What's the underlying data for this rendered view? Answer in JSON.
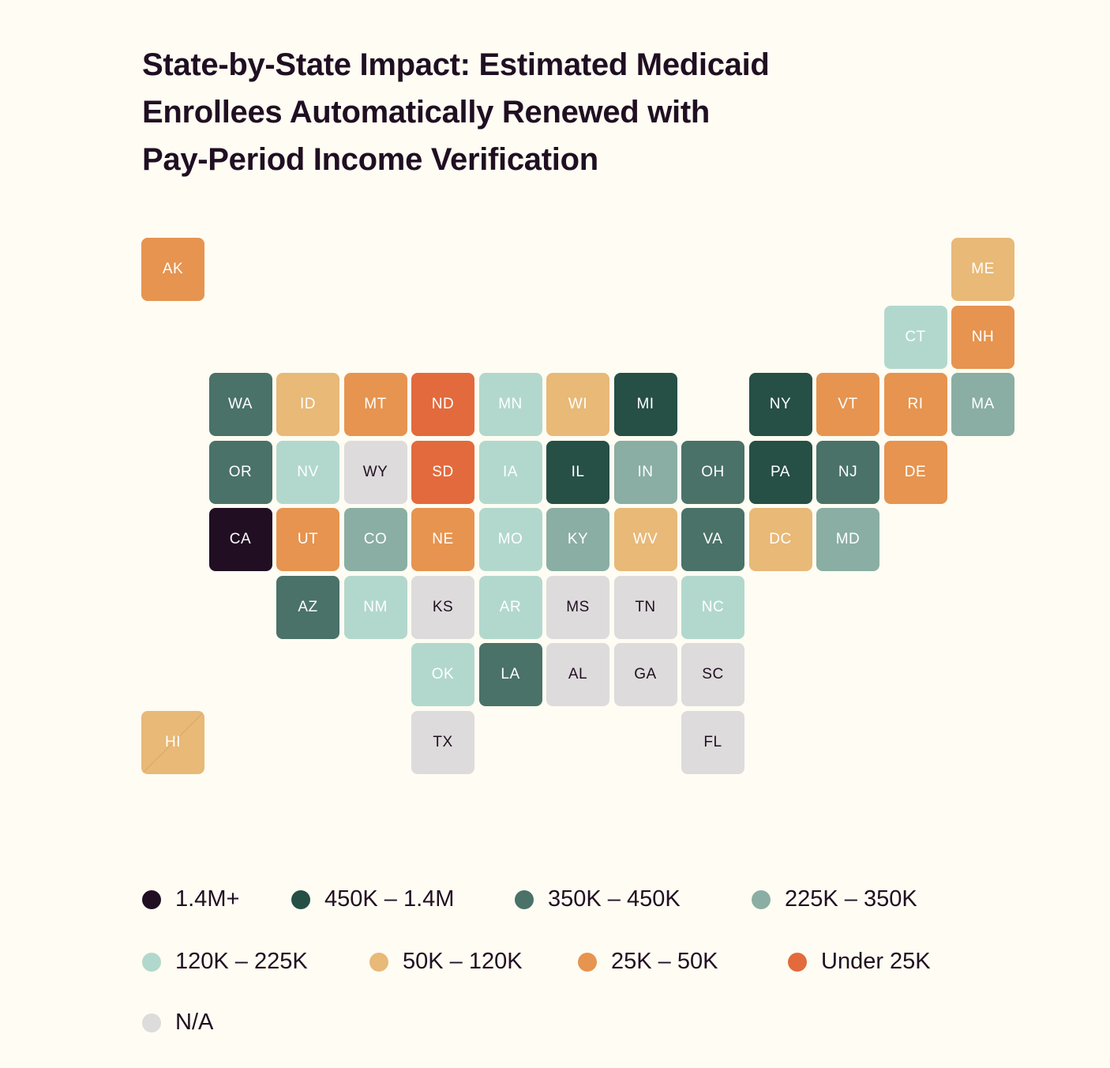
{
  "title_lines": [
    "State-by-State Impact: Estimated Medicaid",
    "Enrollees Automatically Renewed with",
    "Pay-Period Income Verification"
  ],
  "legend": [
    {
      "label": "1.4M+",
      "color": "#220e23"
    },
    {
      "label": "450K – 1.4M",
      "color": "#264f45"
    },
    {
      "label": "350K – 450K",
      "color": "#4a7268"
    },
    {
      "label": "225K – 350K",
      "color": "#8aaea3"
    },
    {
      "label": "120K – 225K",
      "color": "#b2d8cd"
    },
    {
      "label": "50K – 120K",
      "color": "#e8b977"
    },
    {
      "label": "25K – 50K",
      "color": "#e6944f"
    },
    {
      "label": "Under 25K",
      "color": "#e36a3c"
    },
    {
      "label": "N/A",
      "color": "#dddbdb"
    }
  ],
  "states": [
    {
      "abbr": "AK",
      "bin": 6,
      "col": 0,
      "row": 0
    },
    {
      "abbr": "ME",
      "bin": 5,
      "col": 12,
      "row": 0
    },
    {
      "abbr": "CT",
      "bin": 4,
      "col": 11,
      "row": 1
    },
    {
      "abbr": "NH",
      "bin": 6,
      "col": 12,
      "row": 1
    },
    {
      "abbr": "WA",
      "bin": 2,
      "col": 1,
      "row": 2
    },
    {
      "abbr": "ID",
      "bin": 5,
      "col": 2,
      "row": 2
    },
    {
      "abbr": "MT",
      "bin": 6,
      "col": 3,
      "row": 2
    },
    {
      "abbr": "ND",
      "bin": 7,
      "col": 4,
      "row": 2
    },
    {
      "abbr": "MN",
      "bin": 4,
      "col": 5,
      "row": 2
    },
    {
      "abbr": "WI",
      "bin": 5,
      "col": 6,
      "row": 2
    },
    {
      "abbr": "MI",
      "bin": 1,
      "col": 7,
      "row": 2
    },
    {
      "abbr": "NY",
      "bin": 1,
      "col": 9,
      "row": 2
    },
    {
      "abbr": "VT",
      "bin": 6,
      "col": 10,
      "row": 2
    },
    {
      "abbr": "RI",
      "bin": 6,
      "col": 11,
      "row": 2
    },
    {
      "abbr": "MA",
      "bin": 3,
      "col": 12,
      "row": 2
    },
    {
      "abbr": "OR",
      "bin": 2,
      "col": 1,
      "row": 3
    },
    {
      "abbr": "NV",
      "bin": 4,
      "col": 2,
      "row": 3
    },
    {
      "abbr": "WY",
      "bin": 8,
      "col": 3,
      "row": 3
    },
    {
      "abbr": "SD",
      "bin": 7,
      "col": 4,
      "row": 3
    },
    {
      "abbr": "IA",
      "bin": 4,
      "col": 5,
      "row": 3
    },
    {
      "abbr": "IL",
      "bin": 1,
      "col": 6,
      "row": 3
    },
    {
      "abbr": "IN",
      "bin": 3,
      "col": 7,
      "row": 3
    },
    {
      "abbr": "OH",
      "bin": 2,
      "col": 8,
      "row": 3
    },
    {
      "abbr": "PA",
      "bin": 1,
      "col": 9,
      "row": 3
    },
    {
      "abbr": "NJ",
      "bin": 2,
      "col": 10,
      "row": 3
    },
    {
      "abbr": "DE",
      "bin": 6,
      "col": 11,
      "row": 3
    },
    {
      "abbr": "CA",
      "bin": 0,
      "col": 1,
      "row": 4
    },
    {
      "abbr": "UT",
      "bin": 6,
      "col": 2,
      "row": 4
    },
    {
      "abbr": "CO",
      "bin": 3,
      "col": 3,
      "row": 4
    },
    {
      "abbr": "NE",
      "bin": 6,
      "col": 4,
      "row": 4
    },
    {
      "abbr": "MO",
      "bin": 4,
      "col": 5,
      "row": 4
    },
    {
      "abbr": "KY",
      "bin": 3,
      "col": 6,
      "row": 4
    },
    {
      "abbr": "WV",
      "bin": 5,
      "col": 7,
      "row": 4
    },
    {
      "abbr": "VA",
      "bin": 2,
      "col": 8,
      "row": 4
    },
    {
      "abbr": "DC",
      "bin": 5,
      "col": 9,
      "row": 4
    },
    {
      "abbr": "MD",
      "bin": 3,
      "col": 10,
      "row": 4
    },
    {
      "abbr": "AZ",
      "bin": 2,
      "col": 2,
      "row": 5
    },
    {
      "abbr": "NM",
      "bin": 4,
      "col": 3,
      "row": 5
    },
    {
      "abbr": "KS",
      "bin": 8,
      "col": 4,
      "row": 5
    },
    {
      "abbr": "AR",
      "bin": 4,
      "col": 5,
      "row": 5
    },
    {
      "abbr": "MS",
      "bin": 8,
      "col": 6,
      "row": 5
    },
    {
      "abbr": "TN",
      "bin": 8,
      "col": 7,
      "row": 5
    },
    {
      "abbr": "NC",
      "bin": 4,
      "col": 8,
      "row": 5
    },
    {
      "abbr": "OK",
      "bin": 4,
      "col": 4,
      "row": 6
    },
    {
      "abbr": "LA",
      "bin": 2,
      "col": 5,
      "row": 6
    },
    {
      "abbr": "AL",
      "bin": 8,
      "col": 6,
      "row": 6
    },
    {
      "abbr": "GA",
      "bin": 8,
      "col": 7,
      "row": 6
    },
    {
      "abbr": "SC",
      "bin": 8,
      "col": 8,
      "row": 6
    },
    {
      "abbr": "HI",
      "bin": 5,
      "col": 0,
      "row": 7,
      "split": true
    },
    {
      "abbr": "TX",
      "bin": 8,
      "col": 4,
      "row": 7
    },
    {
      "abbr": "FL",
      "bin": 8,
      "col": 8,
      "row": 7
    }
  ]
}
